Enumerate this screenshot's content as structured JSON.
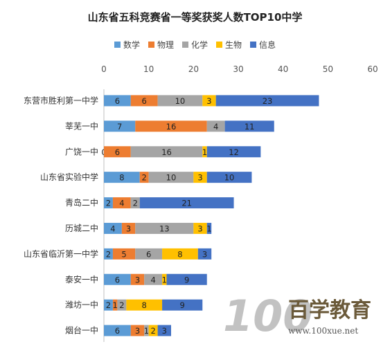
{
  "chart_data": {
    "type": "bar",
    "orientation": "horizontal",
    "stacked": true,
    "title": "山东省五科竞赛省一等奖获奖人数TOP10中学",
    "legend_position": "top",
    "xlim": [
      0,
      60
    ],
    "x_ticks": [
      "0",
      "10",
      "20",
      "30",
      "40",
      "50",
      "60"
    ],
    "categories": [
      "东营市胜利第一中学",
      "莘芜一中",
      "广饶一中",
      "山东省实验中学",
      "青岛二中",
      "历城二中",
      "山东省临沂第一中学",
      "泰安一中",
      "潍坊一中",
      "烟台一中"
    ],
    "series": [
      {
        "name": "数学",
        "color": "#5b9bd5",
        "values": [
          6,
          7,
          0,
          8,
          2,
          4,
          2,
          6,
          2,
          6
        ]
      },
      {
        "name": "物理",
        "color": "#ed7d31",
        "values": [
          6,
          16,
          6,
          2,
          4,
          3,
          5,
          3,
          1,
          3
        ]
      },
      {
        "name": "化学",
        "color": "#a5a5a5",
        "values": [
          10,
          4,
          16,
          10,
          2,
          13,
          6,
          4,
          2,
          1
        ]
      },
      {
        "name": "生物",
        "color": "#ffc000",
        "values": [
          3,
          0,
          1,
          3,
          0,
          3,
          8,
          1,
          8,
          2
        ]
      },
      {
        "name": "信息",
        "color": "#4472c4",
        "values": [
          23,
          11,
          12,
          10,
          21,
          1,
          3,
          9,
          9,
          3
        ]
      }
    ],
    "grid": false
  },
  "watermark": {
    "logo_text": "100",
    "brand_text": "百学教育",
    "url": "www.100xue.net"
  }
}
